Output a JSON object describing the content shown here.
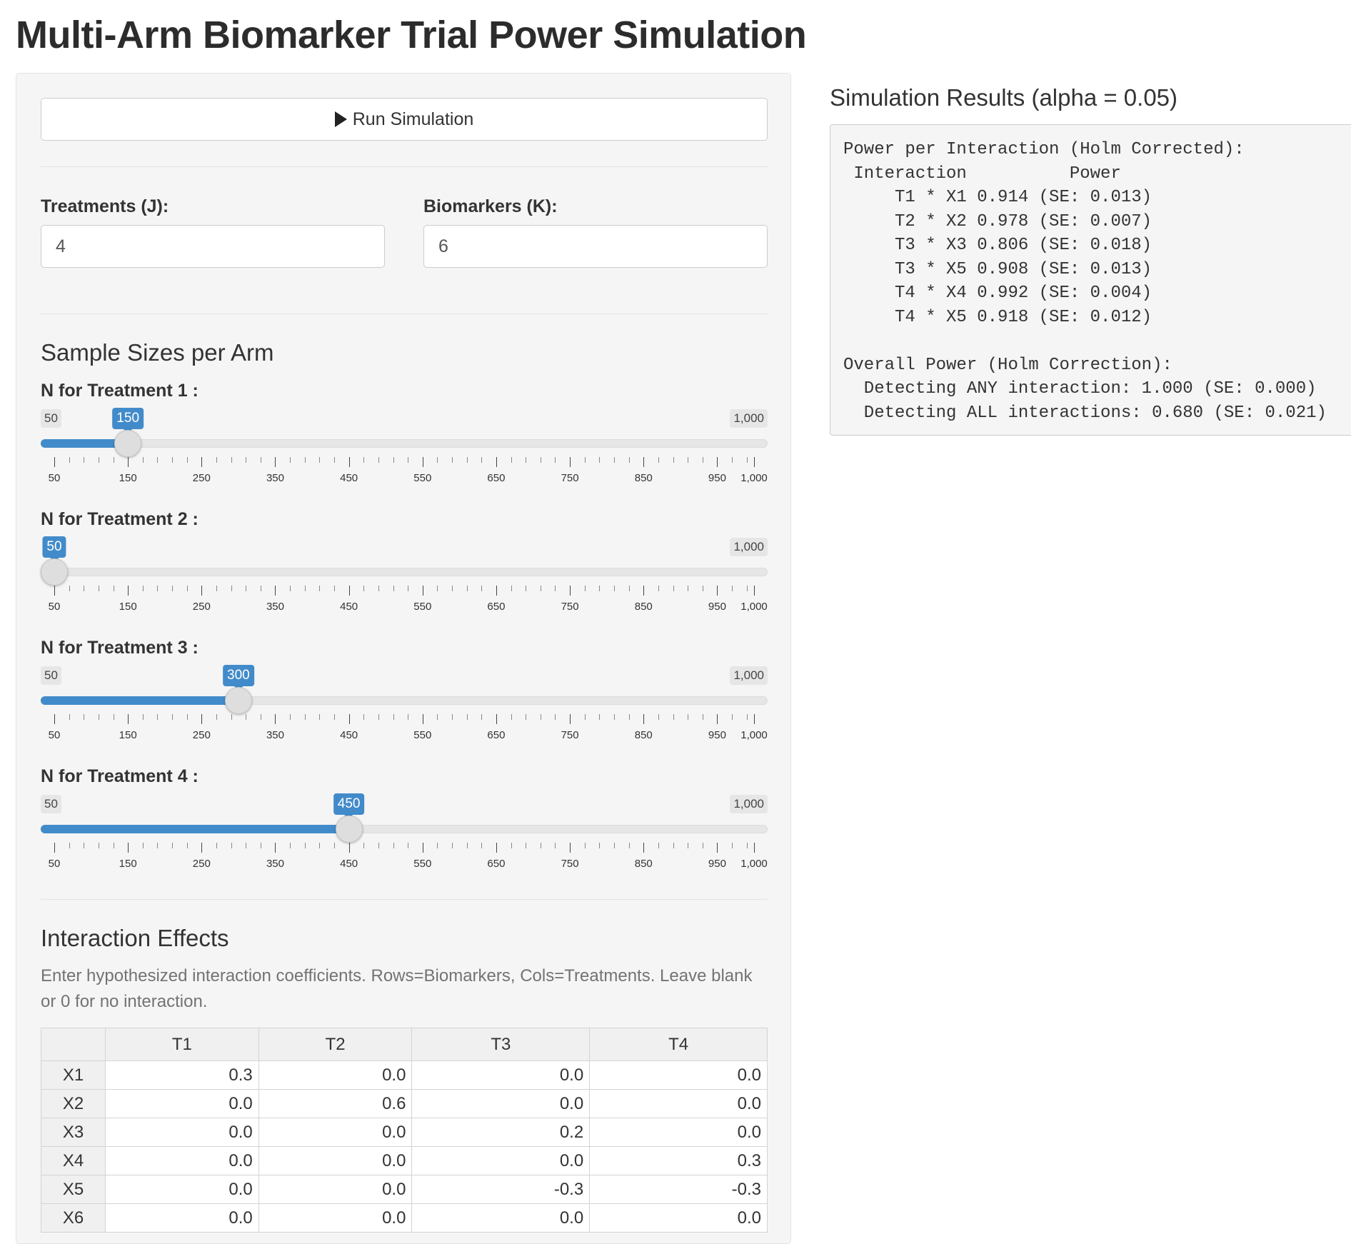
{
  "page": {
    "title": "Multi-Arm Biomarker Trial Power Simulation"
  },
  "run_button": {
    "label": "Run Simulation",
    "icon": "play-icon"
  },
  "inputs": {
    "treatments": {
      "label": "Treatments (J):",
      "value": "4"
    },
    "biomarkers": {
      "label": "Biomarkers (K):",
      "value": "6"
    }
  },
  "sample_sizes": {
    "title": "Sample Sizes per Arm",
    "min": 50,
    "max": 1000,
    "min_label": "50",
    "max_label": "1,000",
    "tick_labels": [
      "50",
      "150",
      "250",
      "350",
      "450",
      "550",
      "650",
      "750",
      "850",
      "950",
      "1,000"
    ],
    "sliders": [
      {
        "label": "N for Treatment 1 :",
        "value": 150,
        "value_label": "150"
      },
      {
        "label": "N for Treatment 2 :",
        "value": 50,
        "value_label": "50"
      },
      {
        "label": "N for Treatment 3 :",
        "value": 300,
        "value_label": "300"
      },
      {
        "label": "N for Treatment 4 :",
        "value": 450,
        "value_label": "450"
      }
    ]
  },
  "interaction_effects": {
    "title": "Interaction Effects",
    "help": "Enter hypothesized interaction coefficients. Rows=Biomarkers, Cols=Treatments. Leave blank or 0 for no interaction.",
    "columns": [
      "T1",
      "T2",
      "T3",
      "T4"
    ],
    "rows": [
      {
        "name": "X1",
        "values": [
          "0.3",
          "0.0",
          "0.0",
          "0.0"
        ]
      },
      {
        "name": "X2",
        "values": [
          "0.0",
          "0.6",
          "0.0",
          "0.0"
        ]
      },
      {
        "name": "X3",
        "values": [
          "0.0",
          "0.0",
          "0.2",
          "0.0"
        ]
      },
      {
        "name": "X4",
        "values": [
          "0.0",
          "0.0",
          "0.0",
          "0.3"
        ]
      },
      {
        "name": "X5",
        "values": [
          "0.0",
          "0.0",
          "-0.3",
          "-0.3"
        ]
      },
      {
        "name": "X6",
        "values": [
          "0.0",
          "0.0",
          "0.0",
          "0.0"
        ]
      }
    ]
  },
  "results": {
    "title": "Simulation Results (alpha = 0.05)",
    "output": "Power per Interaction (Holm Corrected):\n Interaction          Power\n     T1 * X1 0.914 (SE: 0.013)\n     T2 * X2 0.978 (SE: 0.007)\n     T3 * X3 0.806 (SE: 0.018)\n     T3 * X5 0.908 (SE: 0.013)\n     T4 * X4 0.992 (SE: 0.004)\n     T4 * X5 0.918 (SE: 0.012)\n\nOverall Power (Holm Correction):\n  Detecting ANY interaction: 1.000 (SE: 0.000)\n  Detecting ALL interactions: 0.680 (SE: 0.021)"
  },
  "colors": {
    "accent": "#428bca",
    "panel": "#f5f5f5",
    "border": "#e3e3e3"
  }
}
